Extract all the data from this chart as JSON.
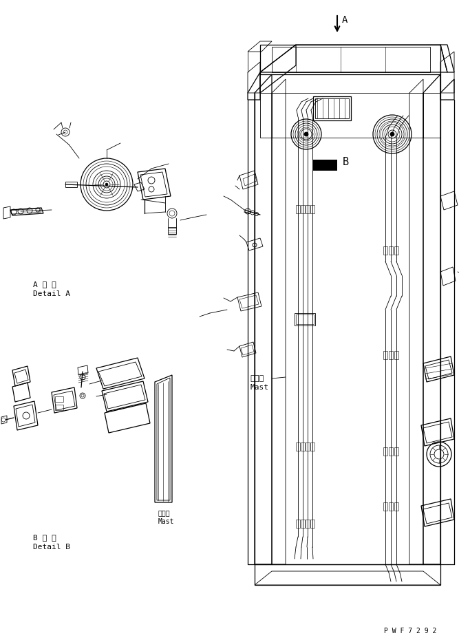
{
  "bg_color": "#ffffff",
  "line_color": "#000000",
  "part_code": "P W F 7 2 9 2",
  "label_A_jp": "A 詳 細",
  "label_A_en": "Detail A",
  "label_B_jp": "B 詳 細",
  "label_B_en": "Detail B",
  "mast_jp_main": "マスト",
  "mast_en_main": "Mast",
  "mast_jp_b": "マスト",
  "mast_en_b": "Mast"
}
